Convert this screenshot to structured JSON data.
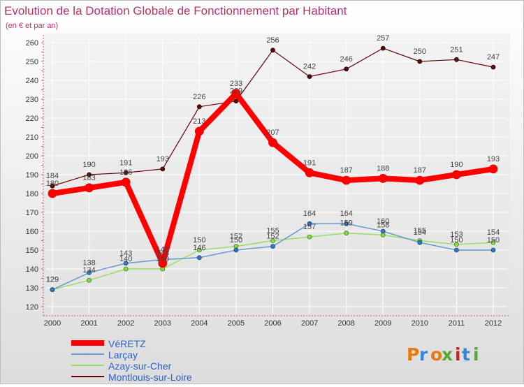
{
  "chart_data": {
    "type": "line",
    "title": "Evolution de la Dotation Globale de Fonctionnement par Habitant",
    "subtitle": "(en € et par an)",
    "xlabel": "",
    "ylabel": "",
    "x": [
      "2000",
      "2001",
      "2002",
      "2003",
      "2004",
      "2005",
      "2006",
      "2007",
      "2008",
      "2009",
      "2010",
      "2011",
      "2012"
    ],
    "ylim": [
      120,
      260
    ],
    "yticks": [
      120,
      130,
      140,
      150,
      160,
      170,
      180,
      190,
      200,
      210,
      220,
      230,
      240,
      250,
      260
    ],
    "grid": true,
    "legend_position": "bottom-left",
    "series": [
      {
        "name": "VéRETZ",
        "color": "#ff0000",
        "values": [
          180,
          183,
          186,
          143,
          213,
          233,
          207,
          191,
          187,
          188,
          187,
          190,
          193
        ]
      },
      {
        "name": "Larçay",
        "color": "#6699cc",
        "values": [
          129,
          138,
          143,
          145,
          146,
          150,
          152,
          164,
          164,
          160,
          154,
          150,
          150
        ]
      },
      {
        "name": "Azay-sur-Cher",
        "color": "#99dd66",
        "values": [
          129,
          134,
          140,
          140,
          150,
          152,
          155,
          157,
          159,
          158,
          155,
          153,
          154
        ]
      },
      {
        "name": "Montlouis-sur-Loire",
        "color": "#660000",
        "values": [
          184,
          190,
          191,
          193,
          226,
          229,
          256,
          242,
          246,
          257,
          250,
          251,
          247
        ]
      }
    ]
  },
  "brand": {
    "logo_text": "Proxiti"
  }
}
